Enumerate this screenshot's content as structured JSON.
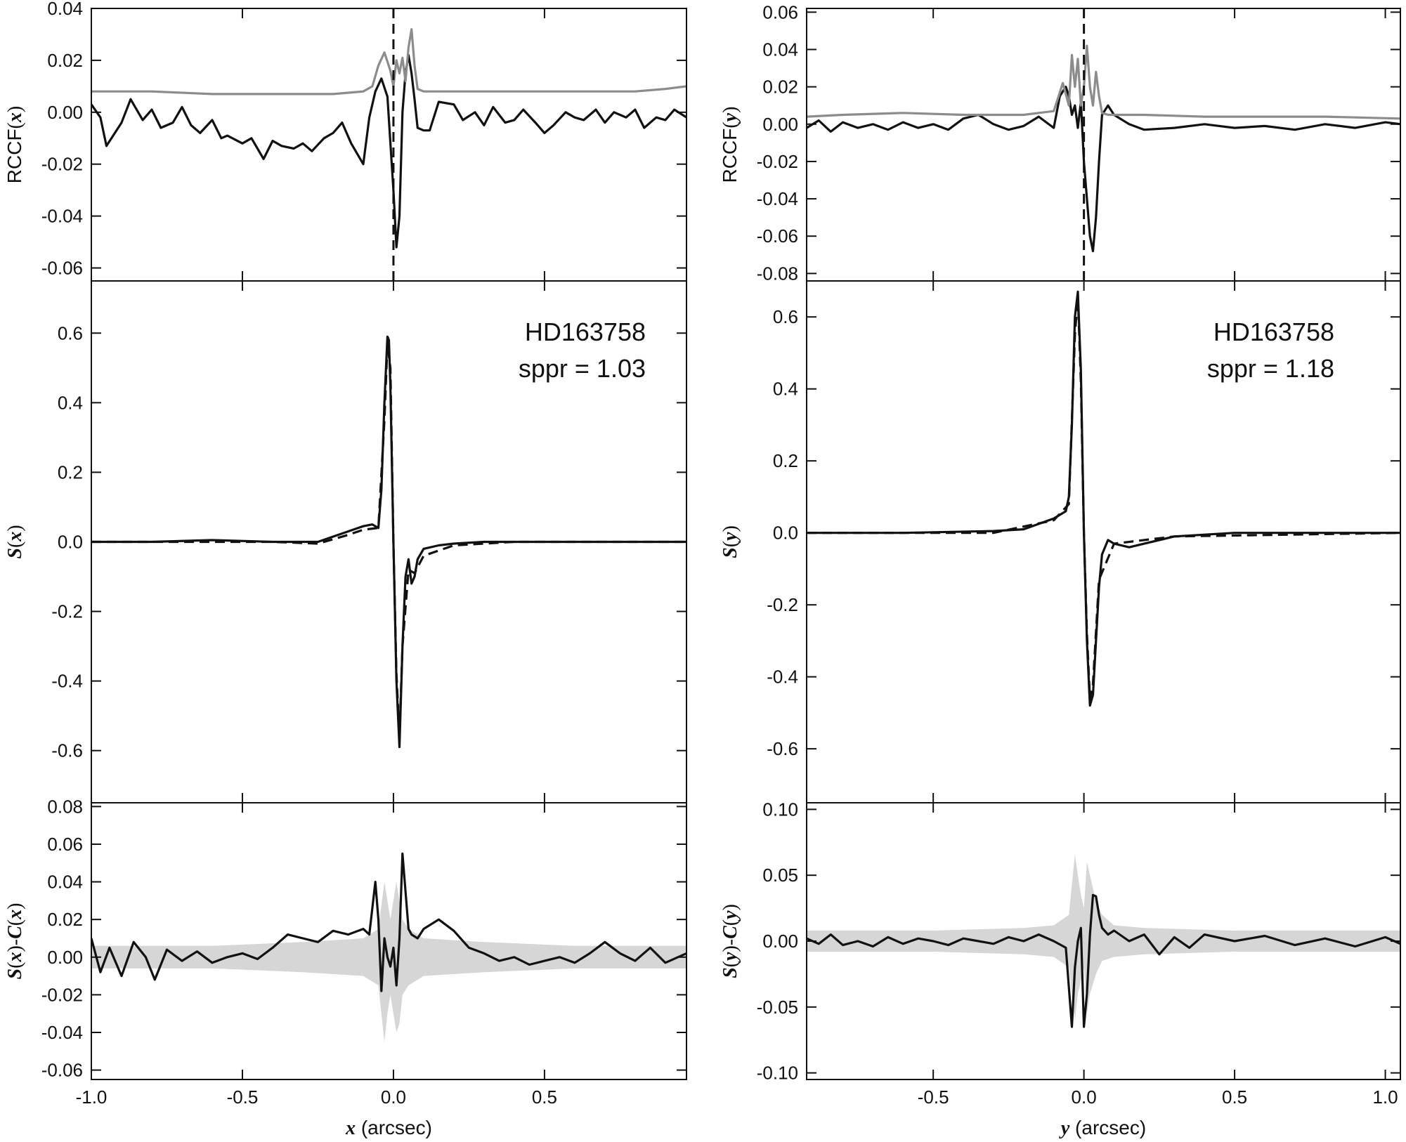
{
  "chart_data": [
    {
      "type": "line",
      "panel": "left-top",
      "ylabel": "RCCF(x)",
      "ylim": [
        -0.065,
        0.04
      ],
      "xlim": [
        -1.0,
        0.97
      ],
      "y_ticks": [
        "0.04",
        "0.02",
        "0.00",
        "-0.02",
        "-0.04",
        "-0.06"
      ],
      "y_tick_values": [
        0.04,
        0.02,
        0.0,
        -0.02,
        -0.04,
        -0.06
      ],
      "vline": 0.0,
      "colors": {
        "black": "#111111",
        "gray": "#8c8c8c"
      },
      "series": [
        {
          "color": "black",
          "x": [
            -1.0,
            -0.97,
            -0.95,
            -0.9,
            -0.87,
            -0.83,
            -0.8,
            -0.77,
            -0.73,
            -0.7,
            -0.67,
            -0.64,
            -0.6,
            -0.57,
            -0.55,
            -0.5,
            -0.47,
            -0.43,
            -0.4,
            -0.37,
            -0.33,
            -0.3,
            -0.27,
            -0.23,
            -0.2,
            -0.17,
            -0.14,
            -0.1,
            -0.08,
            -0.06,
            -0.04,
            -0.02,
            0.0,
            0.01,
            0.02,
            0.03,
            0.04,
            0.05,
            0.06,
            0.07,
            0.08,
            0.1,
            0.12,
            0.15,
            0.2,
            0.23,
            0.27,
            0.3,
            0.33,
            0.37,
            0.4,
            0.43,
            0.47,
            0.5,
            0.53,
            0.57,
            0.6,
            0.63,
            0.67,
            0.7,
            0.73,
            0.77,
            0.8,
            0.83,
            0.87,
            0.9,
            0.93,
            0.97
          ],
          "y": [
            0.003,
            -0.002,
            -0.013,
            -0.004,
            0.005,
            -0.003,
            0.001,
            -0.006,
            -0.004,
            0.002,
            -0.005,
            -0.008,
            -0.003,
            -0.01,
            -0.009,
            -0.012,
            -0.01,
            -0.018,
            -0.011,
            -0.013,
            -0.014,
            -0.012,
            -0.015,
            -0.01,
            -0.008,
            -0.004,
            -0.012,
            -0.02,
            -0.002,
            0.008,
            0.013,
            0.006,
            -0.03,
            -0.052,
            -0.04,
            0.0,
            0.015,
            0.022,
            0.015,
            0.005,
            -0.006,
            -0.007,
            -0.007,
            0.004,
            0.003,
            -0.003,
            0.0,
            -0.005,
            0.002,
            -0.004,
            -0.003,
            0.001,
            -0.004,
            -0.008,
            -0.005,
            0.0,
            -0.002,
            -0.003,
            0.001,
            -0.004,
            0.0,
            -0.002,
            0.001,
            -0.006,
            -0.002,
            -0.003,
            0.001,
            -0.002
          ]
        },
        {
          "color": "gray",
          "x": [
            -1.0,
            -0.8,
            -0.6,
            -0.4,
            -0.2,
            -0.1,
            -0.07,
            -0.05,
            -0.03,
            -0.01,
            0.0,
            0.01,
            0.02,
            0.03,
            0.04,
            0.05,
            0.06,
            0.07,
            0.08,
            0.1,
            0.2,
            0.4,
            0.6,
            0.8,
            0.9,
            0.97
          ],
          "y": [
            0.008,
            0.008,
            0.007,
            0.007,
            0.007,
            0.008,
            0.01,
            0.018,
            0.023,
            0.016,
            0.01,
            0.02,
            0.015,
            0.021,
            0.012,
            0.025,
            0.032,
            0.018,
            0.009,
            0.008,
            0.008,
            0.008,
            0.008,
            0.008,
            0.009,
            0.01
          ]
        }
      ]
    },
    {
      "type": "line",
      "panel": "left-middle",
      "ylabel": "S(x)",
      "ylim": [
        -0.75,
        0.75
      ],
      "xlim": [
        -1.0,
        0.97
      ],
      "y_ticks": [
        "0.6",
        "0.4",
        "0.2",
        "0.0",
        "-0.2",
        "-0.4",
        "-0.6"
      ],
      "y_tick_values": [
        0.6,
        0.4,
        0.2,
        0.0,
        -0.2,
        -0.4,
        -0.6
      ],
      "annotation": [
        "HD163758",
        "sppr = 1.03"
      ],
      "series": [
        {
          "color": "black",
          "style": "solid",
          "x": [
            -1.0,
            -0.8,
            -0.6,
            -0.4,
            -0.25,
            -0.15,
            -0.1,
            -0.07,
            -0.05,
            -0.04,
            -0.03,
            -0.02,
            -0.015,
            -0.01,
            0.0,
            0.01,
            0.02,
            0.03,
            0.04,
            0.05,
            0.06,
            0.07,
            0.08,
            0.1,
            0.15,
            0.2,
            0.3,
            0.5,
            0.7,
            0.97
          ],
          "y": [
            0.0,
            0.0,
            0.005,
            0.0,
            0.0,
            0.03,
            0.045,
            0.05,
            0.04,
            0.15,
            0.4,
            0.59,
            0.58,
            0.45,
            0.0,
            -0.4,
            -0.59,
            -0.3,
            -0.1,
            -0.05,
            -0.12,
            -0.1,
            -0.05,
            -0.02,
            -0.01,
            -0.005,
            0.0,
            0.0,
            0.0,
            0.0
          ]
        },
        {
          "color": "black",
          "style": "dashed",
          "x": [
            -1.0,
            -0.4,
            -0.25,
            -0.15,
            -0.1,
            -0.05,
            -0.03,
            -0.02,
            -0.01,
            0.0,
            0.01,
            0.02,
            0.03,
            0.05,
            0.07,
            0.1,
            0.2,
            0.4,
            0.97
          ],
          "y": [
            0.0,
            0.0,
            -0.005,
            0.02,
            0.035,
            0.04,
            0.35,
            0.57,
            0.5,
            0.0,
            -0.38,
            -0.56,
            -0.3,
            -0.08,
            -0.09,
            -0.04,
            -0.01,
            0.0,
            0.0
          ]
        }
      ]
    },
    {
      "type": "area",
      "panel": "left-bottom",
      "ylabel": "S(x)-C(x)",
      "xlabel": "x (arcsec)",
      "ylim": [
        -0.065,
        0.082
      ],
      "xlim": [
        -1.0,
        0.97
      ],
      "y_ticks": [
        "0.08",
        "0.06",
        "0.04",
        "0.02",
        "0.00",
        "-0.02",
        "-0.04",
        "-0.06"
      ],
      "y_tick_values": [
        0.08,
        0.06,
        0.04,
        0.02,
        0.0,
        -0.02,
        -0.04,
        -0.06
      ],
      "x_ticks": [
        "-1.0",
        "-0.5",
        "0.0",
        "0.5"
      ],
      "x_tick_values": [
        -1.0,
        -0.5,
        0.0,
        0.5
      ],
      "band": {
        "color": "#d6d6d6",
        "x": [
          -1.0,
          -0.6,
          -0.3,
          -0.1,
          -0.05,
          -0.03,
          -0.02,
          -0.01,
          0.0,
          0.01,
          0.02,
          0.03,
          0.05,
          0.1,
          0.3,
          0.6,
          0.97
        ],
        "upper": [
          0.006,
          0.006,
          0.008,
          0.01,
          0.015,
          0.04,
          0.03,
          0.02,
          0.03,
          0.04,
          0.03,
          0.02,
          0.015,
          0.01,
          0.008,
          0.006,
          0.006
        ],
        "lower": [
          -0.006,
          -0.006,
          -0.008,
          -0.01,
          -0.015,
          -0.045,
          -0.03,
          -0.02,
          -0.03,
          -0.04,
          -0.035,
          -0.02,
          -0.015,
          -0.01,
          -0.008,
          -0.006,
          -0.006
        ]
      },
      "series": [
        {
          "color": "black",
          "x": [
            -1.0,
            -0.97,
            -0.94,
            -0.9,
            -0.86,
            -0.82,
            -0.79,
            -0.75,
            -0.7,
            -0.65,
            -0.6,
            -0.55,
            -0.5,
            -0.45,
            -0.4,
            -0.35,
            -0.3,
            -0.25,
            -0.2,
            -0.15,
            -0.1,
            -0.08,
            -0.06,
            -0.05,
            -0.04,
            -0.03,
            -0.02,
            -0.01,
            0.0,
            0.01,
            0.02,
            0.03,
            0.04,
            0.05,
            0.06,
            0.08,
            0.1,
            0.15,
            0.2,
            0.25,
            0.3,
            0.35,
            0.4,
            0.45,
            0.5,
            0.55,
            0.6,
            0.65,
            0.7,
            0.75,
            0.8,
            0.85,
            0.9,
            0.97
          ],
          "y": [
            0.01,
            -0.008,
            0.005,
            -0.01,
            0.008,
            0.0,
            -0.012,
            0.004,
            -0.002,
            0.003,
            -0.003,
            0.0,
            0.002,
            -0.001,
            0.005,
            0.012,
            0.01,
            0.008,
            0.014,
            0.012,
            0.015,
            0.012,
            0.04,
            0.02,
            -0.018,
            0.01,
            0.0,
            -0.005,
            0.005,
            -0.015,
            0.01,
            0.055,
            0.035,
            0.015,
            0.012,
            0.01,
            0.015,
            0.02,
            0.014,
            0.005,
            0.002,
            -0.002,
            0.0,
            -0.004,
            -0.002,
            0.0,
            -0.003,
            0.002,
            0.008,
            0.002,
            -0.002,
            0.005,
            -0.003,
            0.002
          ]
        }
      ]
    },
    {
      "type": "line",
      "panel": "right-top",
      "ylabel": "RCCF(y)",
      "ylim": [
        -0.084,
        0.062
      ],
      "xlim": [
        -0.92,
        1.05
      ],
      "y_ticks": [
        "0.06",
        "0.04",
        "0.02",
        "0.00",
        "-0.02",
        "-0.04",
        "-0.06",
        "-0.08"
      ],
      "y_tick_values": [
        0.06,
        0.04,
        0.02,
        0.0,
        -0.02,
        -0.04,
        -0.06,
        -0.08
      ],
      "vline": 0.0,
      "series": [
        {
          "color": "black",
          "x": [
            -0.92,
            -0.88,
            -0.84,
            -0.8,
            -0.75,
            -0.7,
            -0.65,
            -0.6,
            -0.55,
            -0.5,
            -0.45,
            -0.4,
            -0.35,
            -0.3,
            -0.25,
            -0.2,
            -0.15,
            -0.1,
            -0.08,
            -0.06,
            -0.05,
            -0.04,
            -0.03,
            -0.02,
            -0.01,
            0.0,
            0.01,
            0.02,
            0.03,
            0.04,
            0.05,
            0.06,
            0.08,
            0.1,
            0.15,
            0.2,
            0.3,
            0.4,
            0.5,
            0.6,
            0.7,
            0.8,
            0.9,
            1.0,
            1.05
          ],
          "y": [
            -0.002,
            0.002,
            -0.004,
            0.001,
            -0.002,
            0.0,
            -0.003,
            0.001,
            -0.002,
            0.0,
            -0.003,
            0.003,
            0.005,
            0.0,
            -0.003,
            -0.001,
            0.004,
            -0.002,
            0.015,
            0.02,
            0.015,
            0.005,
            0.01,
            -0.002,
            0.012,
            -0.02,
            -0.04,
            -0.06,
            -0.068,
            -0.05,
            -0.02,
            0.005,
            0.01,
            0.005,
            0.0,
            -0.003,
            -0.002,
            0.0,
            -0.002,
            -0.001,
            -0.003,
            0.0,
            -0.002,
            0.001,
            0.0
          ]
        },
        {
          "color": "gray",
          "x": [
            -0.92,
            -0.8,
            -0.6,
            -0.4,
            -0.2,
            -0.1,
            -0.07,
            -0.05,
            -0.04,
            -0.03,
            -0.02,
            -0.01,
            0.0,
            0.01,
            0.02,
            0.03,
            0.04,
            0.05,
            0.06,
            0.08,
            0.1,
            0.2,
            0.4,
            0.6,
            0.8,
            1.05
          ],
          "y": [
            0.004,
            0.005,
            0.006,
            0.005,
            0.005,
            0.007,
            0.022,
            0.01,
            0.037,
            0.02,
            0.035,
            0.01,
            0.02,
            0.042,
            0.02,
            0.01,
            0.028,
            0.015,
            0.006,
            0.005,
            0.005,
            0.005,
            0.004,
            0.004,
            0.004,
            0.003
          ]
        }
      ]
    },
    {
      "type": "line",
      "panel": "right-middle",
      "ylabel": "S(y)",
      "ylim": [
        -0.75,
        0.7
      ],
      "xlim": [
        -0.92,
        1.05
      ],
      "y_ticks": [
        "0.6",
        "0.4",
        "0.2",
        "0.0",
        "-0.2",
        "-0.4",
        "-0.6"
      ],
      "y_tick_values": [
        0.6,
        0.4,
        0.2,
        0.0,
        -0.2,
        -0.4,
        -0.6
      ],
      "annotation": [
        "HD163758",
        "sppr = 1.18"
      ],
      "series": [
        {
          "color": "black",
          "style": "solid",
          "x": [
            -0.92,
            -0.6,
            -0.3,
            -0.2,
            -0.1,
            -0.06,
            -0.05,
            -0.04,
            -0.03,
            -0.02,
            -0.01,
            0.0,
            0.01,
            0.02,
            0.03,
            0.04,
            0.05,
            0.06,
            0.08,
            0.1,
            0.15,
            0.2,
            0.3,
            0.5,
            0.8,
            1.05
          ],
          "y": [
            0.0,
            0.0,
            0.005,
            0.01,
            0.04,
            0.06,
            0.1,
            0.3,
            0.6,
            0.67,
            0.45,
            0.0,
            -0.3,
            -0.48,
            -0.45,
            -0.3,
            -0.15,
            -0.06,
            -0.02,
            -0.03,
            -0.04,
            -0.03,
            -0.01,
            0.0,
            0.0,
            0.0
          ]
        },
        {
          "color": "black",
          "style": "dashed",
          "x": [
            -0.92,
            -0.3,
            -0.1,
            -0.05,
            -0.03,
            -0.02,
            -0.01,
            0.0,
            0.01,
            0.02,
            0.03,
            0.05,
            0.1,
            0.3,
            1.05
          ],
          "y": [
            0.0,
            0.0,
            0.035,
            0.08,
            0.55,
            0.66,
            0.42,
            0.0,
            -0.28,
            -0.46,
            -0.42,
            -0.13,
            -0.03,
            -0.01,
            0.0
          ]
        }
      ]
    },
    {
      "type": "area",
      "panel": "right-bottom",
      "ylabel": "S(y)-C(y)",
      "xlabel": "y (arcsec)",
      "ylim": [
        -0.105,
        0.105
      ],
      "xlim": [
        -0.92,
        1.05
      ],
      "y_ticks": [
        "0.10",
        "0.05",
        "0.00",
        "-0.05",
        "-0.10"
      ],
      "y_tick_values": [
        0.1,
        0.05,
        0.0,
        -0.05,
        -0.1
      ],
      "x_ticks": [
        "-0.5",
        "0.0",
        "0.5",
        "1.0"
      ],
      "x_tick_values": [
        -0.5,
        0.0,
        0.5,
        1.0
      ],
      "band": {
        "color": "#d6d6d6",
        "x": [
          -0.92,
          -0.5,
          -0.2,
          -0.1,
          -0.05,
          -0.03,
          -0.02,
          -0.01,
          0.0,
          0.01,
          0.02,
          0.04,
          0.06,
          0.1,
          0.2,
          0.5,
          1.05
        ],
        "upper": [
          0.008,
          0.008,
          0.01,
          0.012,
          0.02,
          0.066,
          0.05,
          0.035,
          0.025,
          0.06,
          0.05,
          0.03,
          0.02,
          0.012,
          0.01,
          0.008,
          0.008
        ],
        "lower": [
          -0.008,
          -0.008,
          -0.01,
          -0.012,
          -0.02,
          -0.06,
          -0.04,
          -0.03,
          -0.02,
          -0.055,
          -0.04,
          -0.025,
          -0.015,
          -0.012,
          -0.01,
          -0.008,
          -0.008
        ]
      },
      "series": [
        {
          "color": "black",
          "x": [
            -0.92,
            -0.88,
            -0.84,
            -0.8,
            -0.75,
            -0.7,
            -0.65,
            -0.6,
            -0.55,
            -0.5,
            -0.45,
            -0.4,
            -0.35,
            -0.3,
            -0.25,
            -0.2,
            -0.15,
            -0.1,
            -0.06,
            -0.04,
            -0.03,
            -0.02,
            -0.01,
            0.0,
            0.01,
            0.02,
            0.03,
            0.04,
            0.05,
            0.06,
            0.08,
            0.1,
            0.15,
            0.2,
            0.25,
            0.3,
            0.35,
            0.4,
            0.5,
            0.6,
            0.7,
            0.8,
            0.9,
            1.0,
            1.05
          ],
          "y": [
            0.002,
            -0.002,
            0.005,
            -0.003,
            0.0,
            -0.004,
            0.003,
            -0.002,
            0.002,
            0.0,
            -0.003,
            0.002,
            0.0,
            -0.002,
            0.003,
            0.0,
            0.005,
            0.0,
            -0.005,
            -0.065,
            -0.02,
            0.0,
            0.01,
            -0.065,
            -0.04,
            0.005,
            0.035,
            0.034,
            0.02,
            0.01,
            0.005,
            0.008,
            0.0,
            0.005,
            -0.01,
            0.003,
            -0.005,
            0.005,
            0.0,
            0.004,
            -0.003,
            0.002,
            -0.004,
            0.003,
            -0.002
          ]
        }
      ]
    }
  ]
}
